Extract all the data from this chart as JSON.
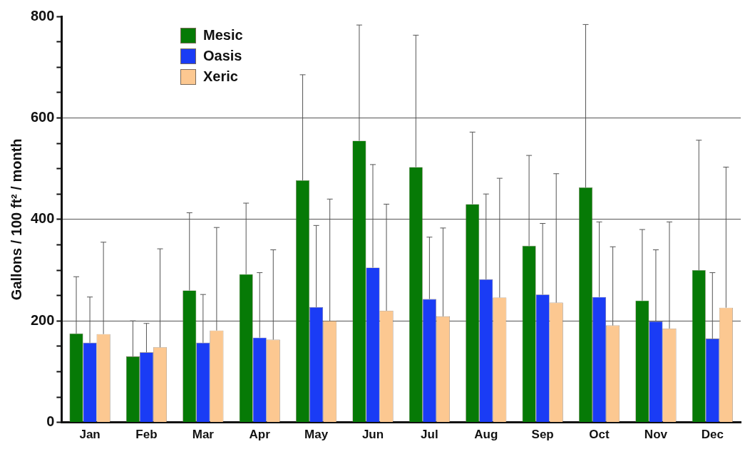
{
  "chart_data": {
    "type": "bar",
    "ylabel": "Gallons / 100 ft² / month",
    "categories": [
      "Jan",
      "Feb",
      "Mar",
      "Apr",
      "May",
      "Jun",
      "Jul",
      "Aug",
      "Sep",
      "Oct",
      "Nov",
      "Dec"
    ],
    "series": [
      {
        "name": "Mesic",
        "color": "#067a06",
        "values": [
          175,
          130,
          260,
          292,
          477,
          555,
          503,
          430,
          348,
          463,
          240,
          300
        ],
        "errors": [
          [
            175,
            287
          ],
          [
            130,
            200
          ],
          [
            260,
            413
          ],
          [
            292,
            432
          ],
          [
            477,
            685
          ],
          [
            555,
            783
          ],
          [
            503,
            763
          ],
          [
            430,
            572
          ],
          [
            348,
            526
          ],
          [
            463,
            784
          ],
          [
            240,
            380
          ],
          [
            300,
            556
          ]
        ]
      },
      {
        "name": "Oasis",
        "color": "#1a3cf5",
        "values": [
          157,
          138,
          157,
          167,
          227,
          305,
          243,
          282,
          252,
          247,
          199,
          165
        ],
        "errors": [
          [
            157,
            247
          ],
          [
            138,
            195
          ],
          [
            157,
            252
          ],
          [
            167,
            295
          ],
          [
            227,
            388
          ],
          [
            305,
            508
          ],
          [
            243,
            365
          ],
          [
            282,
            450
          ],
          [
            252,
            392
          ],
          [
            247,
            395
          ],
          [
            199,
            340
          ],
          [
            165,
            295
          ]
        ]
      },
      {
        "name": "Xeric",
        "color": "#fcc891",
        "values": [
          174,
          148,
          181,
          163,
          200,
          220,
          209,
          246,
          236,
          191,
          185,
          226
        ],
        "errors": [
          [
            174,
            355
          ],
          [
            148,
            342
          ],
          [
            181,
            384
          ],
          [
            163,
            340
          ],
          [
            200,
            440
          ],
          [
            220,
            430
          ],
          [
            209,
            383
          ],
          [
            246,
            481
          ],
          [
            236,
            490
          ],
          [
            191,
            346
          ],
          [
            185,
            395
          ],
          [
            226,
            503
          ]
        ]
      }
    ],
    "ylim": [
      0,
      800
    ],
    "yticks": [
      0,
      {
        "value": 50,
        "label": null
      },
      {
        "value": 100,
        "label": null
      },
      {
        "value": 150,
        "label": null
      },
      200,
      {
        "value": 250,
        "label": null
      },
      {
        "value": 300,
        "label": null
      },
      {
        "value": 350,
        "label": null
      },
      400,
      {
        "value": 450,
        "label": null
      },
      {
        "value": 500,
        "label": null
      },
      {
        "value": 550,
        "label": null
      },
      600,
      {
        "value": 650,
        "label": null
      },
      {
        "value": 700,
        "label": null
      },
      {
        "value": 750,
        "label": null
      },
      800
    ],
    "grid": "y",
    "legend": "top left"
  }
}
